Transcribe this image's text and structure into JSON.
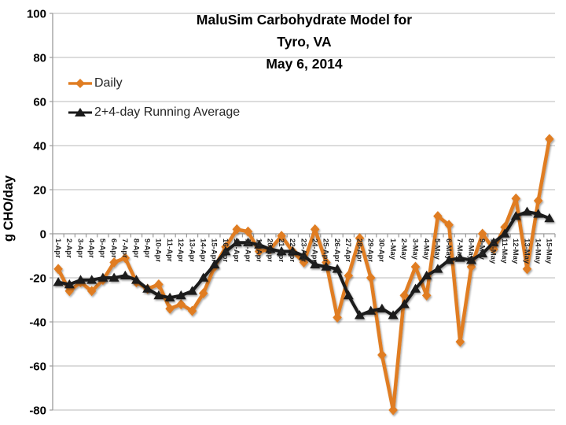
{
  "title": {
    "line1": "MaluSim Carbohydrate Model for",
    "line2": "Tyro, VA",
    "line3": "May 6, 2014"
  },
  "y_axis": {
    "label": "g CHO/day",
    "min": -80,
    "max": 100,
    "tick_step": 20
  },
  "legend": {
    "position": "top-left-inside",
    "items": [
      {
        "label": "Daily",
        "marker": "diamond",
        "color": "#E07D22"
      },
      {
        "label": "2+4-day Running Average",
        "marker": "triangle",
        "color": "#1A1A1A"
      }
    ]
  },
  "colors": {
    "series_daily": "#E07D22",
    "series_running_avg": "#1A1A1A",
    "gridline": "#C8C8C8",
    "axis": "#9B9B9B",
    "tick_label": "#262626",
    "background": "#FFFFFF"
  },
  "chart_data": {
    "type": "line",
    "title": "MaluSim Carbohydrate Model for Tyro, VA — May 6, 2014",
    "xlabel": "",
    "ylabel": "g CHO/day",
    "ylim": [
      -80,
      100
    ],
    "y_ticks": [
      100,
      80,
      60,
      40,
      20,
      0,
      -20,
      -40,
      -60,
      -80
    ],
    "grid": "horizontal",
    "legend_position": "top-left-inside",
    "x_label_rotation": 90,
    "categories": [
      "1-Apr",
      "2-Apr",
      "3-Apr",
      "4-Apr",
      "5-Apr",
      "6-Apr",
      "7-Apr",
      "8-Apr",
      "9-Apr",
      "10-Apr",
      "11-Apr",
      "12-Apr",
      "13-Apr",
      "14-Apr",
      "15-Apr",
      "16-Apr",
      "17-Apr",
      "18-Apr",
      "19-Apr",
      "20-Apr",
      "21-Apr",
      "22-Apr",
      "23-Apr",
      "24-Apr",
      "25-Apr",
      "26-Apr",
      "27-Apr",
      "28-Apr",
      "29-Apr",
      "30-Apr",
      "1-May",
      "2-May",
      "3-May",
      "4-May",
      "5-May",
      "6-May",
      "7-May",
      "8-May",
      "9-May",
      "10-May",
      "11-May",
      "12-May",
      "13-May",
      "14-May",
      "15-May"
    ],
    "series": [
      {
        "name": "Daily",
        "marker": "diamond",
        "color": "#E07D22",
        "values": [
          -16,
          -26,
          -22,
          -26,
          -21,
          -13,
          -11,
          -22,
          -25,
          -23,
          -34,
          -32,
          -35,
          -27,
          -15,
          -6,
          2,
          1,
          -8,
          -7,
          -1,
          -8,
          -13,
          2,
          -13,
          -38,
          -19,
          -2,
          -20,
          -55,
          -80,
          -28,
          -15,
          -28,
          8,
          4,
          -49,
          -15,
          0,
          -7,
          3,
          16,
          -16,
          15,
          43
        ]
      },
      {
        "name": "2+4-day Running Average",
        "marker": "triangle",
        "color": "#1A1A1A",
        "values": [
          -22,
          -23,
          -21,
          -21,
          -20,
          -20,
          -19,
          -21,
          -25,
          -28,
          -29,
          -28,
          -26,
          -20,
          -14,
          -8,
          -4,
          -4,
          -5,
          -7,
          -8,
          -8,
          -10,
          -14,
          -15,
          -16,
          -28,
          -37,
          -35,
          -34,
          -37,
          -32,
          -25,
          -19,
          -16,
          -12,
          -11,
          -12,
          -9,
          -4,
          0,
          8,
          10,
          9,
          7
        ]
      }
    ]
  }
}
